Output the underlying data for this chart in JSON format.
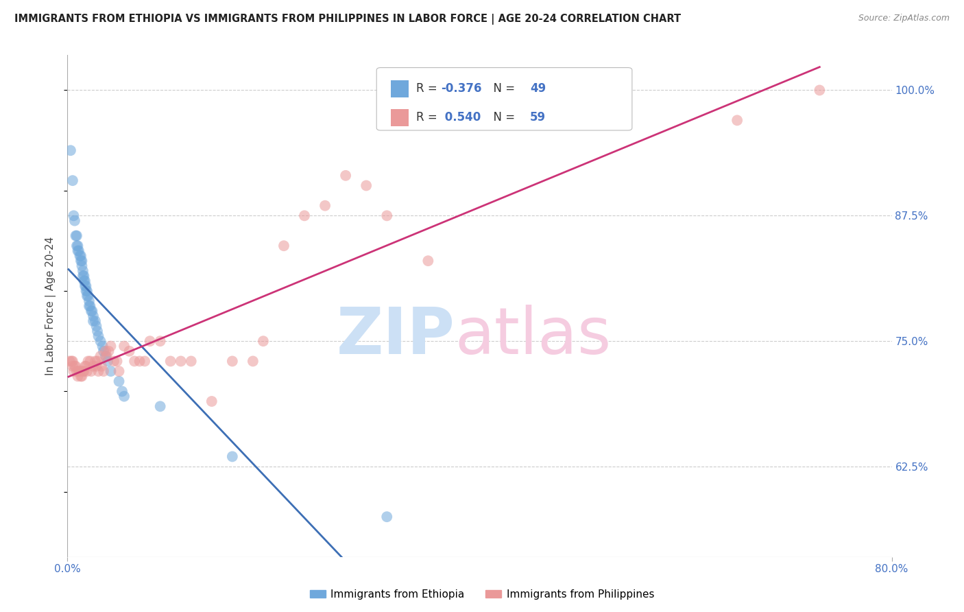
{
  "title": "IMMIGRANTS FROM ETHIOPIA VS IMMIGRANTS FROM PHILIPPINES IN LABOR FORCE | AGE 20-24 CORRELATION CHART",
  "source": "Source: ZipAtlas.com",
  "legend_label1": "Immigrants from Ethiopia",
  "legend_label2": "Immigrants from Philippines",
  "ylabel": "In Labor Force | Age 20-24",
  "r1": -0.376,
  "n1": 49,
  "r2": 0.54,
  "n2": 59,
  "xmin": 0.0,
  "xmax": 0.8,
  "ymin": 0.535,
  "ymax": 1.035,
  "yticks": [
    0.625,
    0.75,
    0.875,
    1.0
  ],
  "ytick_labels": [
    "62.5%",
    "75.0%",
    "87.5%",
    "100.0%"
  ],
  "color_ethiopia": "#6fa8dc",
  "color_philippines": "#ea9999",
  "color_line_ethiopia": "#3d6fb5",
  "color_line_philippines": "#cc3377",
  "ethiopia_x": [
    0.003,
    0.005,
    0.006,
    0.007,
    0.008,
    0.009,
    0.009,
    0.01,
    0.01,
    0.011,
    0.012,
    0.013,
    0.013,
    0.014,
    0.014,
    0.015,
    0.015,
    0.016,
    0.016,
    0.017,
    0.017,
    0.018,
    0.018,
    0.019,
    0.019,
    0.02,
    0.021,
    0.021,
    0.022,
    0.023,
    0.024,
    0.025,
    0.025,
    0.027,
    0.028,
    0.029,
    0.03,
    0.032,
    0.034,
    0.035,
    0.037,
    0.039,
    0.042,
    0.05,
    0.053,
    0.055,
    0.09,
    0.16,
    0.31
  ],
  "ethiopia_y": [
    0.94,
    0.91,
    0.875,
    0.87,
    0.855,
    0.855,
    0.845,
    0.845,
    0.84,
    0.84,
    0.835,
    0.835,
    0.83,
    0.83,
    0.825,
    0.82,
    0.815,
    0.815,
    0.81,
    0.81,
    0.805,
    0.805,
    0.8,
    0.8,
    0.795,
    0.795,
    0.79,
    0.785,
    0.785,
    0.78,
    0.78,
    0.775,
    0.77,
    0.77,
    0.765,
    0.76,
    0.755,
    0.75,
    0.745,
    0.74,
    0.735,
    0.73,
    0.72,
    0.71,
    0.7,
    0.695,
    0.685,
    0.635,
    0.575
  ],
  "philippines_x": [
    0.002,
    0.004,
    0.005,
    0.005,
    0.006,
    0.007,
    0.008,
    0.009,
    0.01,
    0.011,
    0.012,
    0.013,
    0.014,
    0.015,
    0.016,
    0.017,
    0.018,
    0.019,
    0.02,
    0.022,
    0.023,
    0.025,
    0.027,
    0.028,
    0.029,
    0.03,
    0.032,
    0.033,
    0.035,
    0.037,
    0.038,
    0.04,
    0.042,
    0.045,
    0.048,
    0.05,
    0.055,
    0.06,
    0.065,
    0.07,
    0.075,
    0.08,
    0.09,
    0.1,
    0.11,
    0.12,
    0.14,
    0.16,
    0.18,
    0.19,
    0.21,
    0.23,
    0.25,
    0.27,
    0.29,
    0.31,
    0.35,
    0.65,
    0.73
  ],
  "philippines_y": [
    0.73,
    0.73,
    0.73,
    0.725,
    0.72,
    0.725,
    0.725,
    0.72,
    0.715,
    0.72,
    0.72,
    0.715,
    0.715,
    0.72,
    0.72,
    0.725,
    0.725,
    0.72,
    0.73,
    0.73,
    0.72,
    0.725,
    0.73,
    0.725,
    0.73,
    0.72,
    0.735,
    0.725,
    0.72,
    0.74,
    0.735,
    0.74,
    0.745,
    0.73,
    0.73,
    0.72,
    0.745,
    0.74,
    0.73,
    0.73,
    0.73,
    0.75,
    0.75,
    0.73,
    0.73,
    0.73,
    0.69,
    0.73,
    0.73,
    0.75,
    0.845,
    0.875,
    0.885,
    0.915,
    0.905,
    0.875,
    0.83,
    0.97,
    1.0
  ]
}
